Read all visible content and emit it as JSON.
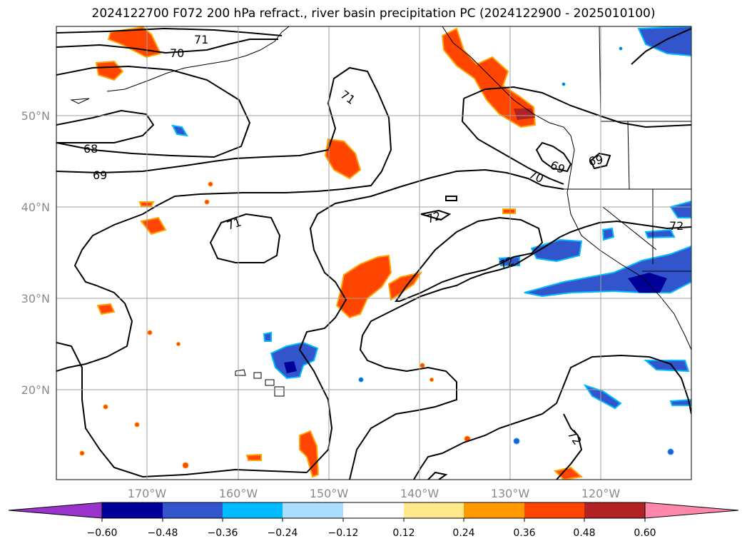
{
  "title": "2024122700 F072 200 hPa refract., river basin precipitation PC (2024122900 - 2025010100)",
  "map": {
    "lat_labels": [
      "50°N",
      "40°N",
      "30°N",
      "20°N"
    ],
    "lon_labels": [
      "170°W",
      "160°W",
      "150°W",
      "140°W",
      "130°W",
      "120°W"
    ],
    "contour_labels": [
      "71",
      "70",
      "71",
      "68",
      "69",
      "71",
      "72",
      "70",
      "69",
      "69",
      "72",
      "72",
      "72"
    ]
  },
  "colorbar": {
    "ticks": [
      "−0.60",
      "−0.48",
      "−0.36",
      "−0.24",
      "−0.12",
      "0.12",
      "0.24",
      "0.36",
      "0.48",
      "0.60"
    ],
    "colors": [
      "#9933cc",
      "#000099",
      "#3355cc",
      "#00bbff",
      "#aaddff",
      "#ffffff",
      "#ffe98a",
      "#ff9900",
      "#ff4400",
      "#b22222",
      "#ff88aa"
    ]
  },
  "colors": {
    "orange": "#ff4500",
    "orange_edge": "#ffa500",
    "yellow": "#ffe070",
    "blue": "#3355cc",
    "navy": "#000099",
    "cyan": "#00bbff",
    "light_blue": "#aaddff"
  }
}
